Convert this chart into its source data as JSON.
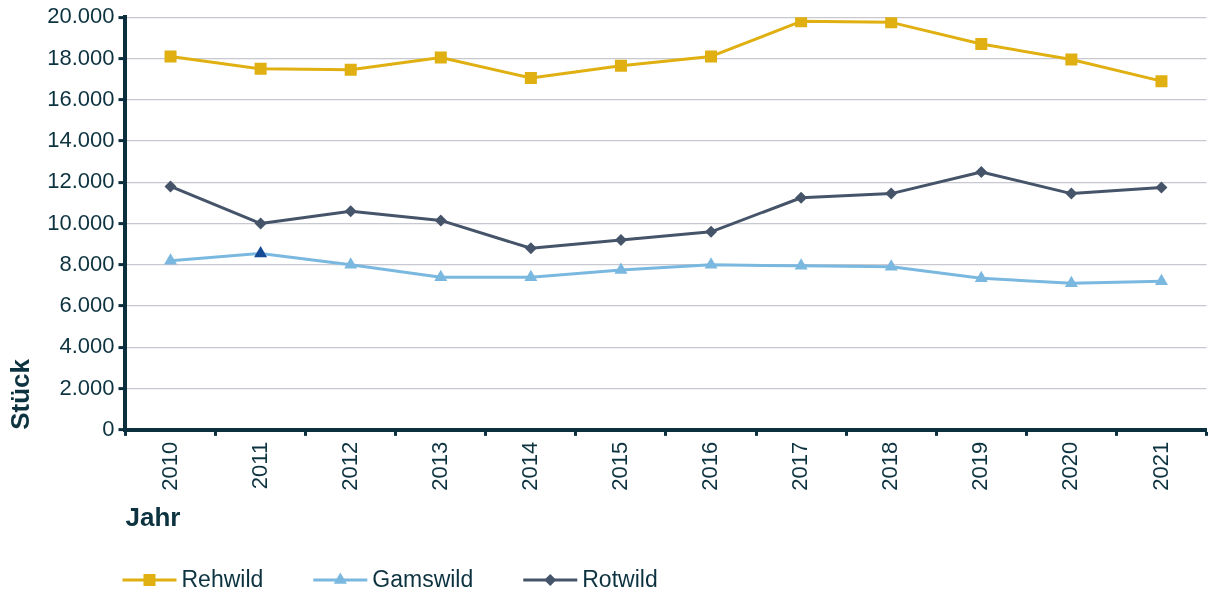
{
  "chart_data": {
    "type": "line",
    "xlabel": "Jahr",
    "ylabel": "Stück",
    "categories": [
      "2010",
      "2011",
      "2012",
      "2013",
      "2014",
      "2015",
      "2016",
      "2017",
      "2018",
      "2019",
      "2020",
      "2021"
    ],
    "ylim": [
      0,
      20000
    ],
    "yticks": [
      0,
      {
        "value": 2000,
        "label": "2.000"
      },
      {
        "value": 4000,
        "label": "4.000"
      },
      {
        "value": 6000,
        "label": "6.000"
      },
      {
        "value": 8000,
        "label": "8.000"
      },
      {
        "value": 10000,
        "label": "10.000"
      },
      {
        "value": 12000,
        "label": "12.000"
      },
      {
        "value": 14000,
        "label": "14.000"
      },
      {
        "value": 16000,
        "label": "16.000"
      },
      {
        "value": 18000,
        "label": "18.000"
      },
      {
        "value": 20000,
        "label": "20.000"
      }
    ],
    "grid": "y",
    "legend": "bottom left",
    "line_style": "solid",
    "series": [
      {
        "name": "Rehwild",
        "color": "#e0b012",
        "marker": "square",
        "values": [
          18100,
          17500,
          17450,
          18050,
          17050,
          17650,
          18100,
          19800,
          19750,
          18700,
          17950,
          16900
        ]
      },
      {
        "name": "Gamswild",
        "color": "#7ab8e0",
        "marker": "triangle",
        "colors": [
          "#7ab8e0",
          "#154a94",
          "#7ab8e0",
          "#7ab8e0",
          "#7ab8e0",
          "#7ab8e0",
          "#7ab8e0",
          "#7ab8e0",
          "#7ab8e0",
          "#7ab8e0",
          "#7ab8e0",
          "#7ab8e0"
        ],
        "values": [
          8200,
          8550,
          8000,
          7400,
          7400,
          7750,
          8000,
          7950,
          7900,
          7350,
          7100,
          7200
        ]
      },
      {
        "name": "Rotwild",
        "color": "#46546a",
        "marker": "diamond",
        "values": [
          11800,
          10000,
          10600,
          10150,
          8800,
          9200,
          9600,
          11250,
          11450,
          12500,
          11450,
          11750
        ]
      }
    ]
  }
}
